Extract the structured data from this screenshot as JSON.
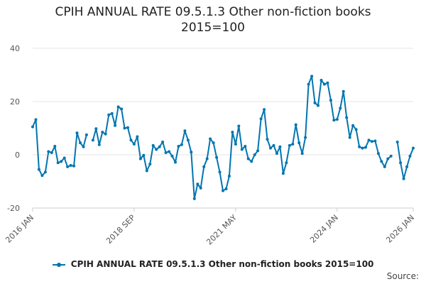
{
  "chart_data": {
    "type": "line",
    "title_line1": "CPIH ANNUAL RATE 09.5.1.3 Other non-fiction books",
    "title_line2": "2015=100",
    "xlabel": "",
    "ylabel": "",
    "ylim": [
      -20,
      40
    ],
    "yticks": [
      -20,
      0,
      20,
      40
    ],
    "ytick_labels": [
      "-20",
      "0",
      "20",
      "40"
    ],
    "xtick_labels": [
      "2016 JAN",
      "2018 SEP",
      "2021 MAY",
      "2024 JAN",
      "2026 JAN"
    ],
    "xtick_indices": [
      0,
      32,
      64,
      96,
      120
    ],
    "legend_position": "bottom",
    "grid": true,
    "series": [
      {
        "name": "CPIH ANNUAL RATE 09.5.1.3 Other non-fiction books 2015=100",
        "color": "#0075b0",
        "values": [
          10.5,
          13.2,
          -5.5,
          -7.8,
          -6.5,
          1.2,
          0.8,
          3.2,
          -3.0,
          -2.5,
          -1.2,
          -4.5,
          -4.0,
          -4.2,
          8.2,
          4.5,
          3.0,
          7.5,
          null,
          5.5,
          9.8,
          3.8,
          8.5,
          7.8,
          15.0,
          15.5,
          11.0,
          18.0,
          17.2,
          10.0,
          10.2,
          5.5,
          4.0,
          6.8,
          -1.5,
          -0.2,
          -6.0,
          -3.5,
          3.5,
          2.0,
          3.0,
          4.8,
          0.8,
          1.2,
          -0.5,
          -2.8,
          3.2,
          3.8,
          9.0,
          5.5,
          1.0,
          -16.5,
          -11.0,
          -12.5,
          -4.5,
          -1.5,
          6.0,
          4.5,
          -1.0,
          -6.5,
          -13.5,
          -12.8,
          -8.0,
          8.5,
          4.0,
          10.8,
          2.0,
          3.2,
          -1.5,
          -2.5,
          0.0,
          1.5,
          13.5,
          17.0,
          5.8,
          2.5,
          3.5,
          0.5,
          3.0,
          -7.0,
          -3.0,
          3.5,
          4.0,
          11.3,
          4.5,
          0.5,
          6.5,
          26.5,
          29.5,
          19.5,
          18.5,
          28.0,
          26.5,
          27.0,
          20.5,
          13.0,
          13.3,
          17.5,
          23.8,
          14.0,
          6.5,
          11.0,
          9.5,
          3.0,
          2.5,
          2.8,
          5.5,
          5.0,
          5.2,
          0.5,
          -2.5,
          -4.5,
          -1.5,
          -0.5,
          null,
          4.8,
          -3.0,
          -9.0,
          -4.5,
          -0.5,
          2.5
        ]
      }
    ]
  },
  "source_label": "Source:"
}
